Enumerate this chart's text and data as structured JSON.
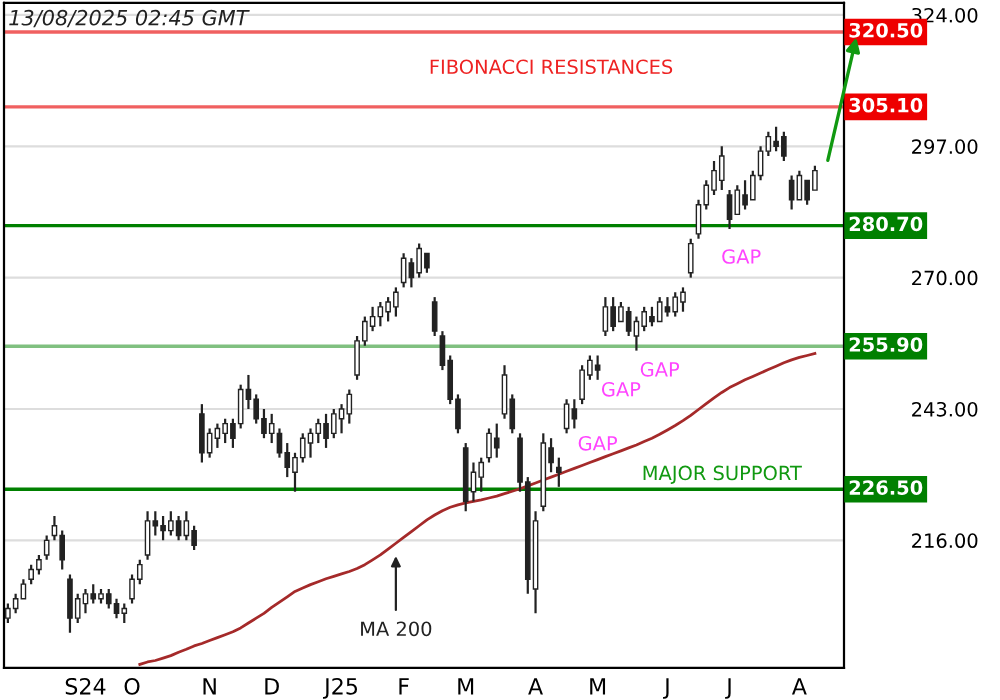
{
  "chart_data": {
    "type": "candlestick",
    "categories": [
      null,
      null,
      null,
      null,
      null,
      null,
      null,
      null,
      null,
      null,
      "S24",
      null,
      null,
      null,
      null,
      null,
      "O",
      null,
      null,
      null,
      null,
      null,
      null,
      null,
      null,
      null,
      "N",
      null,
      null,
      null,
      null,
      null,
      null,
      null,
      "D",
      null,
      null,
      null,
      null,
      null,
      null,
      null,
      null,
      "J25",
      null,
      null,
      null,
      null,
      null,
      null,
      null,
      "F",
      null,
      null,
      null,
      null,
      null,
      null,
      null,
      "M",
      null,
      null,
      null,
      null,
      null,
      null,
      null,
      null,
      "A",
      null,
      null,
      null,
      null,
      null,
      null,
      null,
      "M",
      null,
      null,
      null,
      null,
      null,
      null,
      null,
      null,
      "J",
      null,
      null,
      null,
      null,
      null,
      null,
      null,
      "J",
      null,
      null,
      null,
      null,
      null,
      null,
      null,
      null,
      "A",
      null,
      null
    ],
    "ohlc": [
      [
        200,
        203,
        199,
        202
      ],
      [
        202,
        205,
        201,
        204
      ],
      [
        204,
        208,
        204,
        207
      ],
      [
        208,
        211,
        207,
        210
      ],
      [
        210,
        213,
        209,
        212
      ],
      [
        213,
        217,
        212,
        216
      ],
      [
        217,
        221,
        216,
        219
      ],
      [
        217,
        218,
        210,
        212
      ],
      [
        208,
        209,
        197,
        200
      ],
      [
        200,
        205,
        199,
        204
      ],
      [
        203,
        206,
        201,
        205
      ],
      [
        205,
        207,
        203,
        204
      ],
      [
        204,
        206,
        203,
        205
      ],
      [
        205,
        206,
        202,
        203
      ],
      [
        203,
        204,
        200,
        201
      ],
      [
        201,
        203,
        199,
        202
      ],
      [
        204,
        209,
        203,
        208
      ],
      [
        208,
        212,
        207,
        211
      ],
      [
        213,
        222,
        212,
        220
      ],
      [
        220,
        222,
        217,
        219
      ],
      [
        219,
        221,
        216,
        218
      ],
      [
        218,
        222,
        217,
        220
      ],
      [
        220,
        221,
        216,
        217
      ],
      [
        217,
        222,
        216,
        220
      ],
      [
        218,
        219,
        214,
        215
      ],
      [
        242,
        244,
        232,
        234
      ],
      [
        234,
        239,
        233,
        238
      ],
      [
        237,
        240,
        235,
        239
      ],
      [
        238,
        241,
        236,
        240
      ],
      [
        240,
        241,
        235,
        237
      ],
      [
        240,
        248,
        239,
        247
      ],
      [
        247,
        250,
        243,
        245
      ],
      [
        245,
        246,
        240,
        241
      ],
      [
        241,
        243,
        237,
        238
      ],
      [
        238,
        242,
        236,
        240
      ],
      [
        238,
        239,
        233,
        234
      ],
      [
        234,
        236,
        229,
        231
      ],
      [
        230,
        234,
        226,
        233
      ],
      [
        233,
        238,
        232,
        237
      ],
      [
        236,
        239,
        233,
        238
      ],
      [
        238,
        241,
        236,
        240
      ],
      [
        240,
        242,
        235,
        237
      ],
      [
        238,
        243,
        237,
        242
      ],
      [
        241,
        244,
        238,
        243
      ],
      [
        242,
        247,
        240,
        246
      ],
      [
        250,
        258,
        249,
        257
      ],
      [
        257,
        262,
        256,
        261
      ],
      [
        260,
        264,
        259,
        262
      ],
      [
        262,
        265,
        260,
        264
      ],
      [
        263,
        266,
        261,
        265
      ],
      [
        264,
        268,
        262,
        267
      ],
      [
        269,
        275,
        268,
        274
      ],
      [
        273,
        274,
        268,
        270
      ],
      [
        271,
        277,
        270,
        276
      ],
      [
        275,
        275,
        271,
        272
      ],
      [
        265,
        266,
        258,
        259
      ],
      [
        258,
        259,
        251,
        252
      ],
      [
        253,
        254,
        244,
        245
      ],
      [
        245,
        246,
        238,
        239
      ],
      [
        235,
        236,
        222,
        224
      ],
      [
        226,
        232,
        224,
        230
      ],
      [
        229,
        233,
        226,
        232
      ],
      [
        233,
        239,
        232,
        238
      ],
      [
        237,
        240,
        233,
        235
      ],
      [
        242,
        252,
        241,
        250
      ],
      [
        245,
        246,
        238,
        239
      ],
      [
        237,
        238,
        226,
        228
      ],
      [
        228,
        229,
        205,
        208
      ],
      [
        206,
        222,
        201,
        220
      ],
      [
        223,
        238,
        222,
        236
      ],
      [
        235,
        237,
        230,
        232
      ],
      [
        231,
        233,
        227,
        230
      ],
      [
        239,
        245,
        238,
        244
      ],
      [
        243,
        245,
        239,
        241
      ],
      [
        245,
        252,
        244,
        251
      ],
      [
        250,
        254,
        249,
        253
      ],
      [
        252,
        254,
        249,
        251
      ],
      [
        259,
        266,
        258,
        264
      ],
      [
        264,
        266,
        259,
        260
      ],
      [
        261,
        265,
        261,
        264
      ],
      [
        263,
        264,
        258,
        259
      ],
      [
        258,
        262,
        255,
        261
      ],
      [
        260,
        264,
        259,
        263
      ],
      [
        262,
        264,
        260,
        261
      ],
      [
        261,
        266,
        261,
        265
      ],
      [
        264,
        266,
        262,
        263
      ],
      [
        263,
        267,
        262,
        266
      ],
      [
        265,
        268,
        263,
        267
      ],
      [
        271,
        278,
        270,
        277
      ],
      [
        279,
        286,
        278,
        285
      ],
      [
        285,
        290,
        284,
        289
      ],
      [
        288,
        294,
        287,
        292
      ],
      [
        290,
        297,
        288,
        295
      ],
      [
        287,
        288,
        280,
        282
      ],
      [
        283,
        289,
        283,
        288
      ],
      [
        287,
        290,
        284,
        285
      ],
      [
        286,
        292,
        286,
        291
      ],
      [
        291,
        297,
        290,
        296
      ],
      [
        296,
        300,
        295,
        299
      ],
      [
        298,
        301,
        296,
        297
      ],
      [
        299,
        300,
        294,
        295
      ],
      [
        290,
        291,
        284,
        286
      ],
      [
        286,
        292,
        286,
        291
      ],
      [
        290,
        290,
        285,
        286
      ],
      [
        288,
        293,
        288,
        292
      ]
    ],
    "series": [
      {
        "type": "line",
        "name": "MA 200",
        "color": "#a52a2a",
        "values": [
          null,
          null,
          null,
          null,
          null,
          null,
          null,
          null,
          null,
          null,
          null,
          null,
          null,
          null,
          null,
          null,
          null,
          190.5,
          191,
          191.3,
          191.8,
          192.3,
          193,
          193.6,
          194.3,
          194.8,
          195.4,
          196,
          196.6,
          197.2,
          198,
          199,
          200,
          201,
          202.2,
          203.3,
          204.4,
          205.5,
          206.2,
          206.9,
          207.5,
          208.1,
          208.6,
          209.1,
          209.6,
          210.2,
          211,
          212,
          213,
          214.2,
          215.4,
          216.6,
          217.8,
          219,
          220.2,
          221.2,
          222.1,
          222.8,
          223.3,
          223.7,
          224,
          224.3,
          224.7,
          225.1,
          225.6,
          226.1,
          226.6,
          227.2,
          227.8,
          228.4,
          229,
          229.6,
          230.2,
          230.8,
          231.4,
          232,
          232.6,
          233.2,
          233.8,
          234.4,
          235,
          235.6,
          236.3,
          237,
          237.8,
          238.7,
          239.6,
          240.6,
          241.7,
          242.9,
          244.1,
          245.3,
          246.4,
          247.4,
          248.2,
          249,
          249.7,
          250.4,
          251.1,
          251.8,
          252.5,
          253.1,
          253.6,
          254,
          254.4
        ]
      }
    ],
    "ylim": [
      189.8,
      326.5
    ],
    "yticks": [
      {
        "value": 216,
        "label": "216.00"
      },
      {
        "value": 243,
        "label": "243.00"
      },
      {
        "value": 270,
        "label": "270.00"
      },
      {
        "value": 297,
        "label": "297.00"
      },
      {
        "value": 324,
        "label": "324.00"
      }
    ],
    "ref_lines": [
      {
        "axis": "y",
        "value": 320.5,
        "label": "320.50",
        "color": "#f06060"
      },
      {
        "axis": "y",
        "value": 305.1,
        "label": "305.10",
        "color": "#f06060"
      },
      {
        "axis": "y",
        "value": 280.7,
        "label": "280.70",
        "color": "#008000"
      },
      {
        "axis": "y",
        "value": 255.9,
        "label": "255.90",
        "color": "#80c080"
      },
      {
        "axis": "y",
        "value": 226.5,
        "label": "226.50",
        "color": "#008000"
      }
    ],
    "annotations": [
      "13/08/2025 02:45 GMT",
      "FIBONACCI RESISTANCES",
      "GAP",
      "GAP",
      "GAP",
      "GAP",
      "MAJOR SUPPORT"
    ],
    "grid": "y",
    "legend": false
  }
}
